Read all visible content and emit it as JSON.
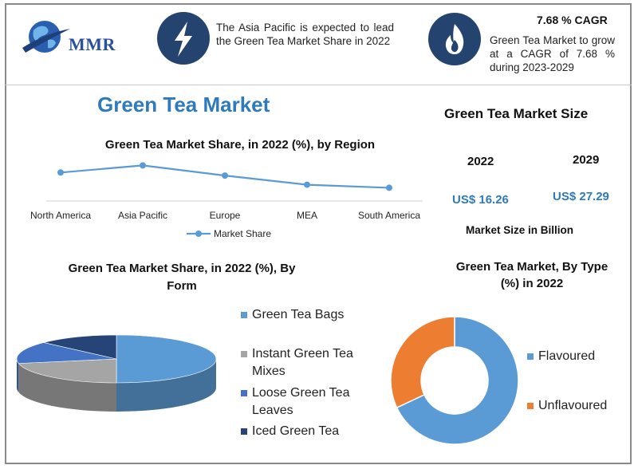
{
  "header": {
    "logo_text": "MMR",
    "region_text": "The Asia Pacific is expected to lead the Green Tea Market Share in 2022",
    "cagr_title": "7.68 % CAGR",
    "cagr_text": "Green Tea Market to grow at a CAGR of 7.68 % during 2023-2029"
  },
  "main_title": "Green Tea Market",
  "market_size": {
    "title": "Green Tea Market Size",
    "year1": "2022",
    "year2": "2029",
    "value1": "US$ 16.26",
    "value2": "US$ 27.29",
    "footnote": "Market Size in Billion"
  },
  "chart_data": [
    {
      "type": "line",
      "title": "Green Tea Market Share, in 2022 (%), by Region",
      "categories": [
        "North America",
        "Asia Pacific",
        "Europe",
        "MEA",
        "South America"
      ],
      "series": [
        {
          "name": "Market Share",
          "values": [
            28,
            35,
            25,
            16,
            13
          ]
        }
      ],
      "ylim": [
        0,
        40
      ],
      "color": "#5b9bd5",
      "legend": "bottom"
    },
    {
      "type": "pie",
      "title": "Green Tea Market Share, in 2022 (%), By Form",
      "categories": [
        "Green Tea Bags",
        "Instant Green Tea Mixes",
        "Loose Green Tea Leaves",
        "Iced Green Tea"
      ],
      "values": [
        50,
        22,
        15,
        13
      ],
      "colors": [
        "#5b9bd5",
        "#a5a5a5",
        "#4472c4",
        "#264478"
      ],
      "legend": "right"
    },
    {
      "type": "pie",
      "title": "Green Tea Market, By Type (%) in 2022",
      "categories": [
        "Flavoured",
        "Unflavoured"
      ],
      "values": [
        68,
        32
      ],
      "colors": [
        "#5b9bd5",
        "#ed7d31"
      ],
      "legend": "right"
    }
  ]
}
